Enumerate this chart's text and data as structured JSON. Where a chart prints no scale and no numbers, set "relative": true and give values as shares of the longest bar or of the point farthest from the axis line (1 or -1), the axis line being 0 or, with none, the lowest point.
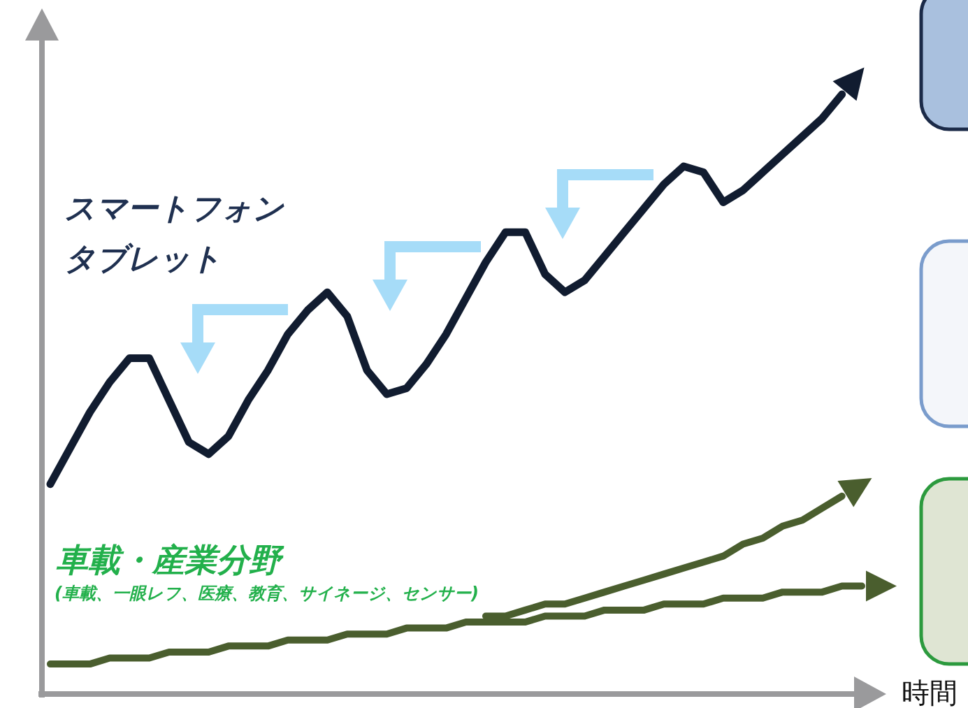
{
  "chart_data": {
    "type": "line",
    "relative": true,
    "xlabel": "時間",
    "categories": [
      null,
      null,
      null,
      null,
      null,
      null,
      null,
      null,
      null,
      null,
      null,
      null,
      null,
      null,
      null,
      null,
      null,
      null,
      null,
      null,
      null,
      null,
      null,
      null,
      null,
      null,
      null,
      null,
      null,
      null,
      null,
      null,
      null,
      null,
      null,
      null,
      null,
      null,
      null,
      null,
      null,
      null
    ],
    "series": [
      {
        "color": "#111c30",
        "values": [
          0.35,
          0.41,
          0.47,
          0.52,
          0.56,
          0.56,
          0.49,
          0.42,
          0.4,
          0.43,
          0.49,
          0.54,
          0.6,
          0.64,
          0.67,
          0.63,
          0.54,
          0.5,
          0.51,
          0.55,
          0.6,
          0.66,
          0.72,
          0.77,
          0.77,
          0.7,
          0.67,
          0.69,
          0.73,
          0.77,
          0.81,
          0.85,
          0.88,
          0.87,
          0.82,
          0.84,
          0.87,
          0.9,
          0.93,
          0.96,
          1.0,
          null
        ]
      },
      {
        "color": "#4a5e2e",
        "values": [
          0.05,
          0.05,
          0.05,
          0.06,
          0.06,
          0.06,
          0.07,
          0.07,
          0.07,
          0.08,
          0.08,
          0.08,
          0.09,
          0.09,
          0.09,
          0.1,
          0.1,
          0.1,
          0.11,
          0.11,
          0.11,
          0.12,
          0.12,
          0.12,
          0.12,
          0.13,
          0.13,
          0.13,
          0.14,
          0.14,
          0.14,
          0.15,
          0.15,
          0.15,
          0.16,
          0.16,
          0.16,
          0.17,
          0.17,
          0.17,
          0.18,
          0.18
        ]
      },
      {
        "color": "#4a5e2e",
        "values": [
          null,
          null,
          null,
          null,
          null,
          null,
          null,
          null,
          null,
          null,
          null,
          null,
          null,
          null,
          null,
          null,
          null,
          null,
          null,
          null,
          null,
          null,
          0.13,
          0.13,
          0.14,
          0.15,
          0.15,
          0.16,
          0.17,
          0.18,
          0.19,
          0.2,
          0.21,
          0.22,
          0.23,
          0.25,
          0.26,
          0.28,
          0.29,
          0.31,
          0.33,
          null
        ]
      }
    ],
    "annotations": [
      "スマートフォン",
      "タブレット",
      "車載・産業分野",
      "(車載、一眼レフ、医療、教育、サイネージ、センサー)"
    ],
    "line_style": "solid",
    "marker": "none"
  }
}
